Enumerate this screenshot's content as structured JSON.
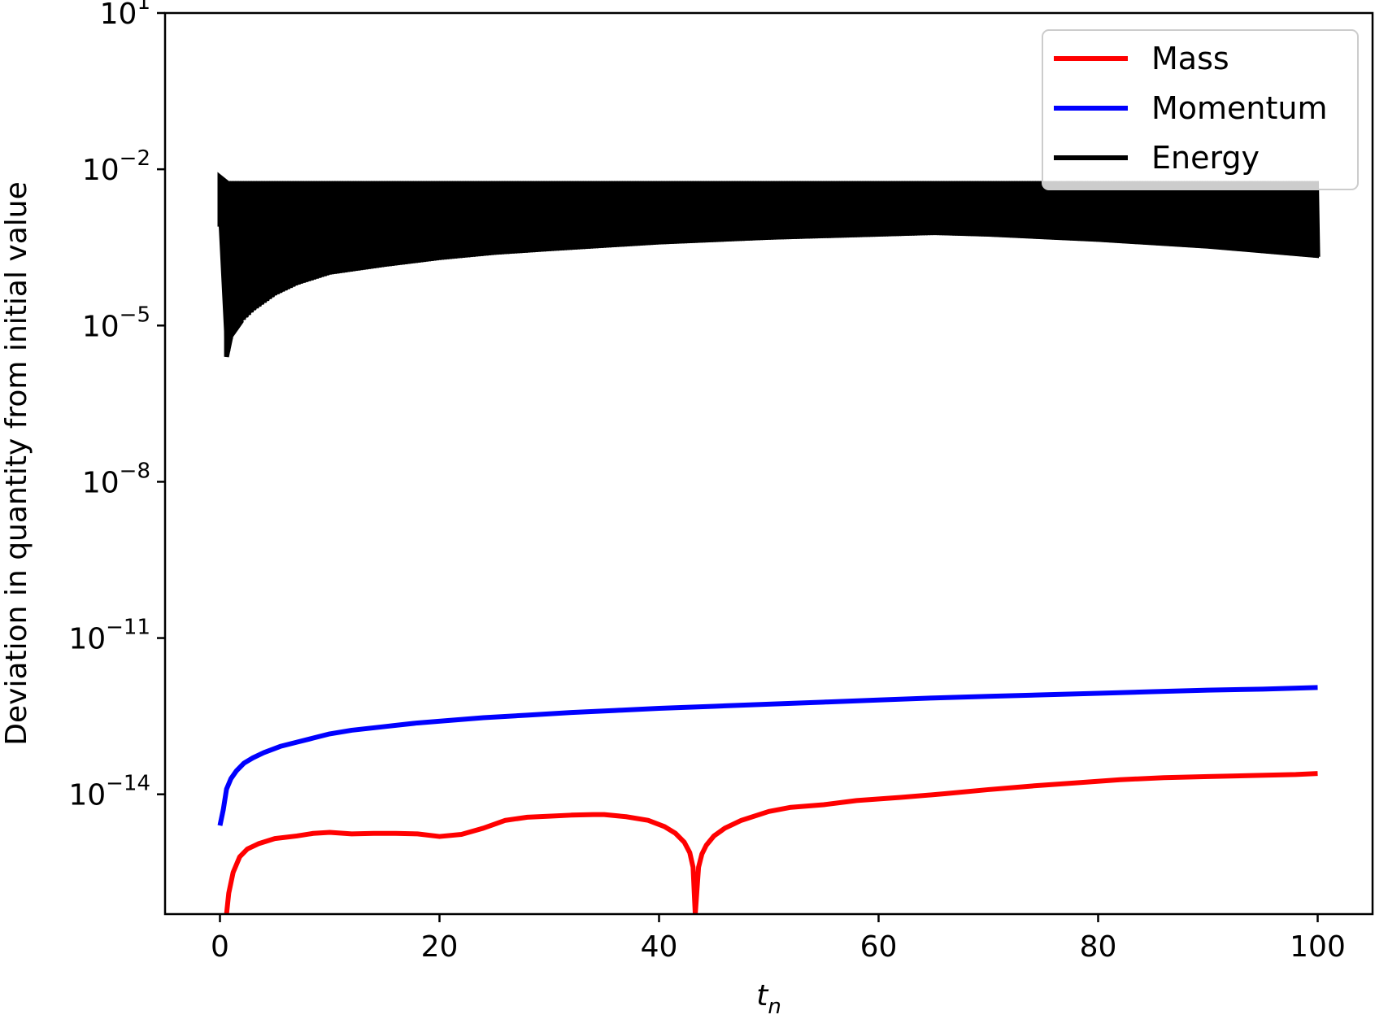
{
  "chart_data": {
    "type": "line",
    "title": "",
    "xlabel": "t",
    "xlabel_subscript": "n",
    "ylabel": "Deviation in quantity from initial value",
    "xscale": "linear",
    "yscale": "log",
    "xlim": [
      -5,
      105
    ],
    "ylim_exponent": [
      -16.3,
      1
    ],
    "x_ticks": [
      0,
      20,
      40,
      60,
      80,
      100
    ],
    "x_tick_labels": [
      "0",
      "20",
      "40",
      "60",
      "80",
      "100"
    ],
    "y_ticks_exponent": [
      1,
      -2,
      -5,
      -8,
      -11,
      -14
    ],
    "y_tick_labels": [
      {
        "base": "10",
        "exp": "1"
      },
      {
        "base": "10",
        "exp": "−2"
      },
      {
        "base": "10",
        "exp": "−5"
      },
      {
        "base": "10",
        "exp": "−8"
      },
      {
        "base": "10",
        "exp": "−11"
      },
      {
        "base": "10",
        "exp": "−14"
      }
    ],
    "grid": false,
    "legend_position": "top-right",
    "series": [
      {
        "name": "Mass",
        "color": "#ff0000",
        "x": [
          0.6,
          0.8,
          1.2,
          1.8,
          2.5,
          3.5,
          5,
          7,
          8.5,
          10,
          12,
          14,
          16,
          18,
          20,
          22,
          24,
          26,
          28,
          30,
          32,
          34,
          35,
          37,
          39,
          40.5,
          41.5,
          42.3,
          42.8,
          43.1,
          43.3,
          43.6,
          43.9,
          44.3,
          45,
          46,
          47.5,
          50,
          52,
          55,
          58,
          62,
          66,
          70,
          74,
          78,
          82,
          86,
          90,
          94,
          98,
          100
        ],
        "log10_y": [
          -16.3,
          -15.9,
          -15.5,
          -15.2,
          -15.05,
          -14.95,
          -14.85,
          -14.8,
          -14.75,
          -14.73,
          -14.76,
          -14.75,
          -14.75,
          -14.76,
          -14.81,
          -14.77,
          -14.65,
          -14.5,
          -14.44,
          -14.42,
          -14.4,
          -14.39,
          -14.39,
          -14.43,
          -14.5,
          -14.62,
          -14.75,
          -14.92,
          -15.12,
          -15.4,
          -16.3,
          -15.4,
          -15.15,
          -14.98,
          -14.8,
          -14.65,
          -14.5,
          -14.33,
          -14.25,
          -14.2,
          -14.12,
          -14.06,
          -13.99,
          -13.91,
          -13.84,
          -13.78,
          -13.72,
          -13.68,
          -13.66,
          -13.64,
          -13.62,
          -13.6
        ],
        "y_exponent_base": 10
      },
      {
        "name": "Momentum",
        "color": "#0000ff",
        "x": [
          0,
          0.3,
          0.6,
          1,
          1.5,
          2.2,
          3,
          4,
          5.5,
          7,
          8.5,
          10,
          12,
          15,
          18,
          21,
          24,
          28,
          32,
          36,
          40,
          45,
          50,
          55,
          60,
          65,
          70,
          75,
          80,
          85,
          90,
          95,
          100
        ],
        "log10_y": [
          -14.6,
          -14.3,
          -13.9,
          -13.7,
          -13.55,
          -13.4,
          -13.3,
          -13.2,
          -13.08,
          -13.0,
          -12.92,
          -12.84,
          -12.77,
          -12.7,
          -12.63,
          -12.58,
          -12.53,
          -12.48,
          -12.43,
          -12.39,
          -12.35,
          -12.31,
          -12.27,
          -12.23,
          -12.19,
          -12.15,
          -12.12,
          -12.09,
          -12.06,
          -12.03,
          -12.0,
          -11.98,
          -11.95
        ],
        "y_exponent_base": 10
      },
      {
        "name": "Energy",
        "color": "#000000",
        "style": "dense-oscillation-band",
        "x_start": 0,
        "x_end": 100,
        "oscillation_count": 420,
        "log10_upper": -2.25,
        "lower_envelope_x": [
          0,
          0.6,
          1,
          1.5,
          2,
          3,
          4,
          5,
          7,
          10,
          15,
          20,
          25,
          30,
          40,
          50,
          60,
          65,
          70,
          80,
          90,
          100
        ],
        "lower_envelope_log10_y": [
          -3.1,
          -5.6,
          -5.2,
          -5.05,
          -4.9,
          -4.7,
          -4.55,
          -4.4,
          -4.2,
          -4.0,
          -3.85,
          -3.72,
          -3.62,
          -3.55,
          -3.42,
          -3.33,
          -3.27,
          -3.24,
          -3.27,
          -3.37,
          -3.5,
          -3.68
        ],
        "y_exponent_base": 10
      }
    ]
  }
}
